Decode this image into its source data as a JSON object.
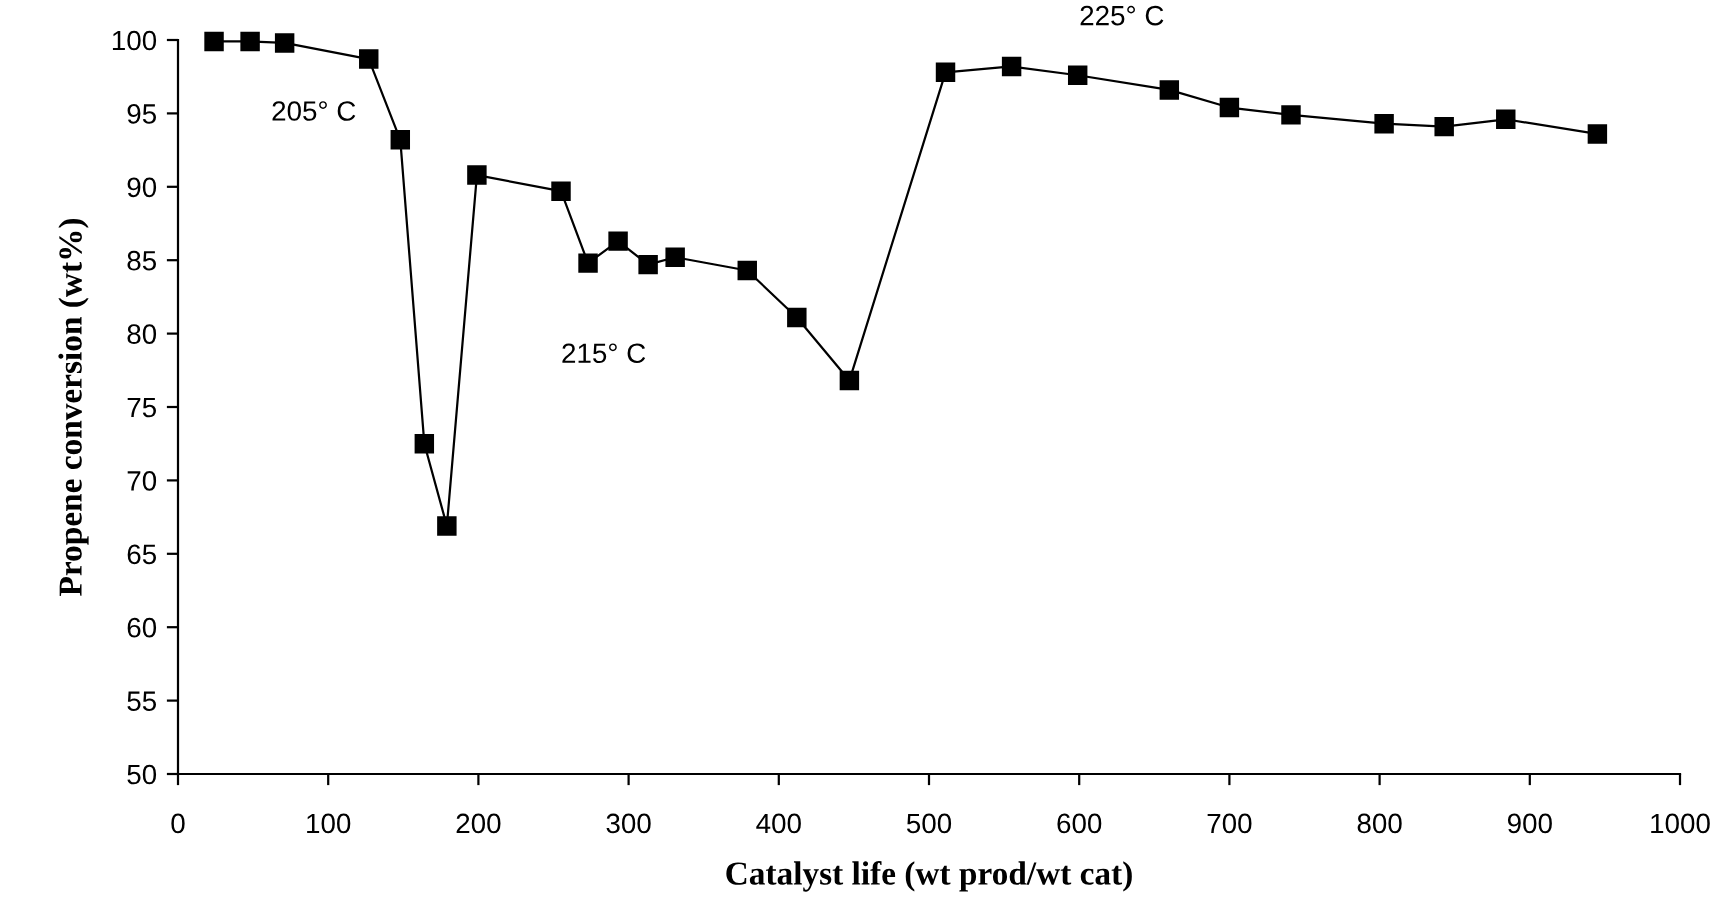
{
  "chart_data": {
    "type": "line",
    "xlabel": "Catalyst life (wt prod/wt cat)",
    "ylabel": "Propene conversion (wt%)",
    "x": [
      24,
      48,
      71,
      127,
      148,
      164,
      179,
      199,
      255,
      273,
      293,
      313,
      331,
      379,
      412,
      447,
      511,
      555,
      599,
      660,
      700,
      741,
      803,
      843,
      884,
      945
    ],
    "series": [
      {
        "color": "#000000",
        "values": [
          99.9,
          99.9,
          99.8,
          98.7,
          93.2,
          72.5,
          66.9,
          90.8,
          89.7,
          84.8,
          86.3,
          84.7,
          85.2,
          84.3,
          81.1,
          76.8,
          97.8,
          98.2,
          97.6,
          96.6,
          95.4,
          94.9,
          94.3,
          94.1,
          94.6,
          93.6
        ]
      }
    ],
    "xlim": [
      0,
      1000
    ],
    "xticks": [
      0,
      100,
      200,
      300,
      400,
      500,
      600,
      700,
      800,
      900,
      1000
    ],
    "ylim": [
      50,
      100
    ],
    "yticks": [
      50,
      55,
      60,
      65,
      70,
      75,
      80,
      85,
      90,
      95,
      100
    ],
    "marker": "square",
    "line_style": "solid",
    "grid": false,
    "legend": false,
    "annotations": [
      "205° C",
      "215° C",
      "225° C"
    ]
  }
}
